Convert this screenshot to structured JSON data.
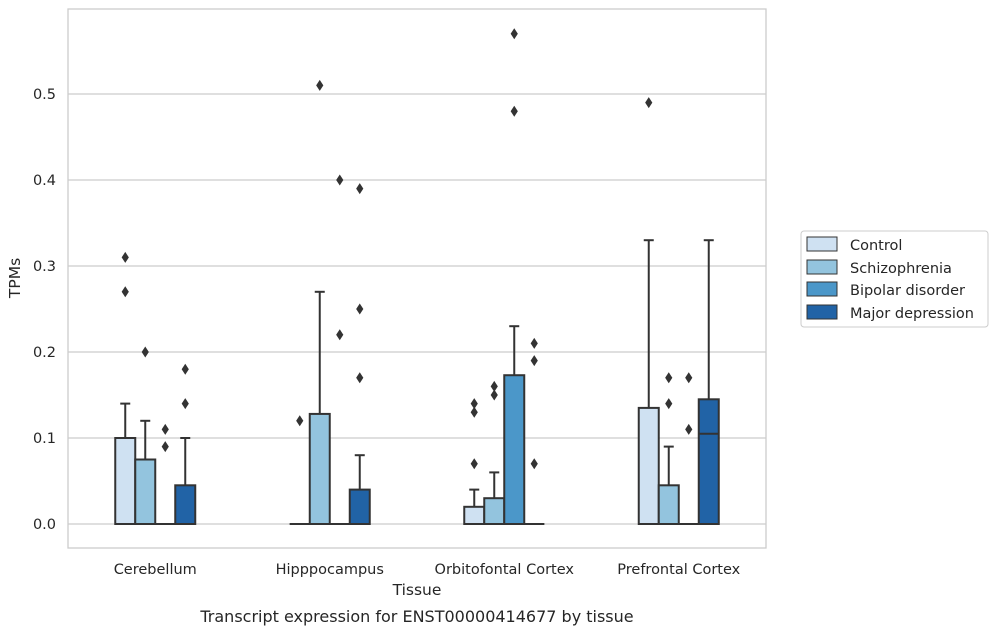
{
  "caption": "Transcript expression for ENST00000414677 by tissue",
  "chart_data": {
    "type": "box",
    "xlabel": "Tissue",
    "ylabel": "TPMs",
    "ylim": [
      -0.028,
      0.6
    ],
    "yticks": [
      "0.0",
      "0.1",
      "0.2",
      "0.3",
      "0.4",
      "0.5"
    ],
    "grid": "horizontal",
    "legend_position": "right",
    "categories": [
      "Cerebellum",
      "Hipppocampus",
      "Orbitofontal Cortex",
      "Prefrontal Cortex"
    ],
    "series": [
      {
        "name": "Control",
        "color": "#cfe1f2",
        "boxes": [
          {
            "q1": 0,
            "median": 0,
            "q3": 0.1,
            "whisker_low": 0,
            "whisker_high": 0.14,
            "outliers": [
              0.27,
              0.31
            ]
          },
          {
            "q1": 0,
            "median": 0,
            "q3": 0,
            "whisker_low": 0,
            "whisker_high": 0,
            "outliers": [
              0.12
            ]
          },
          {
            "q1": 0,
            "median": 0,
            "q3": 0.02,
            "whisker_low": 0,
            "whisker_high": 0.04,
            "outliers": [
              0.07,
              0.13,
              0.14
            ]
          },
          {
            "q1": 0,
            "median": 0,
            "q3": 0.135,
            "whisker_low": 0,
            "whisker_high": 0.33,
            "outliers": [
              0.49
            ]
          }
        ]
      },
      {
        "name": "Schizophrenia",
        "color": "#93c4de",
        "boxes": [
          {
            "q1": 0,
            "median": 0,
            "q3": 0.075,
            "whisker_low": 0,
            "whisker_high": 0.12,
            "outliers": [
              0.2
            ]
          },
          {
            "q1": 0,
            "median": 0,
            "q3": 0.128,
            "whisker_low": 0,
            "whisker_high": 0.27,
            "outliers": [
              0.51
            ]
          },
          {
            "q1": 0,
            "median": 0,
            "q3": 0.03,
            "whisker_low": 0,
            "whisker_high": 0.06,
            "outliers": [
              0.15,
              0.16
            ]
          },
          {
            "q1": 0,
            "median": 0,
            "q3": 0.045,
            "whisker_low": 0,
            "whisker_high": 0.09,
            "outliers": [
              0.14,
              0.17
            ]
          }
        ]
      },
      {
        "name": "Bipolar disorder",
        "color": "#4b97c9",
        "boxes": [
          {
            "q1": 0,
            "median": 0,
            "q3": 0,
            "whisker_low": 0,
            "whisker_high": 0,
            "outliers": [
              0.09,
              0.11
            ]
          },
          {
            "q1": 0,
            "median": 0,
            "q3": 0,
            "whisker_low": 0,
            "whisker_high": 0,
            "outliers": [
              0.22,
              0.4
            ]
          },
          {
            "q1": 0,
            "median": 0,
            "q3": 0.173,
            "whisker_low": 0,
            "whisker_high": 0.23,
            "outliers": [
              0.48,
              0.57
            ]
          },
          {
            "q1": 0,
            "median": 0,
            "q3": 0,
            "whisker_low": 0,
            "whisker_high": 0,
            "outliers": [
              0.11,
              0.17
            ]
          }
        ]
      },
      {
        "name": "Major depression",
        "color": "#2163a6",
        "boxes": [
          {
            "q1": 0,
            "median": 0,
            "q3": 0.045,
            "whisker_low": 0,
            "whisker_high": 0.1,
            "outliers": [
              0.14,
              0.18
            ]
          },
          {
            "q1": 0,
            "median": 0,
            "q3": 0.04,
            "whisker_low": 0,
            "whisker_high": 0.08,
            "outliers": [
              0.17,
              0.25,
              0.39
            ]
          },
          {
            "q1": 0,
            "median": 0,
            "q3": 0,
            "whisker_low": 0,
            "whisker_high": 0,
            "outliers": [
              0.07,
              0.19,
              0.21
            ]
          },
          {
            "q1": 0,
            "median": 0.105,
            "q3": 0.145,
            "whisker_low": 0,
            "whisker_high": 0.33,
            "outliers": []
          }
        ]
      }
    ]
  }
}
